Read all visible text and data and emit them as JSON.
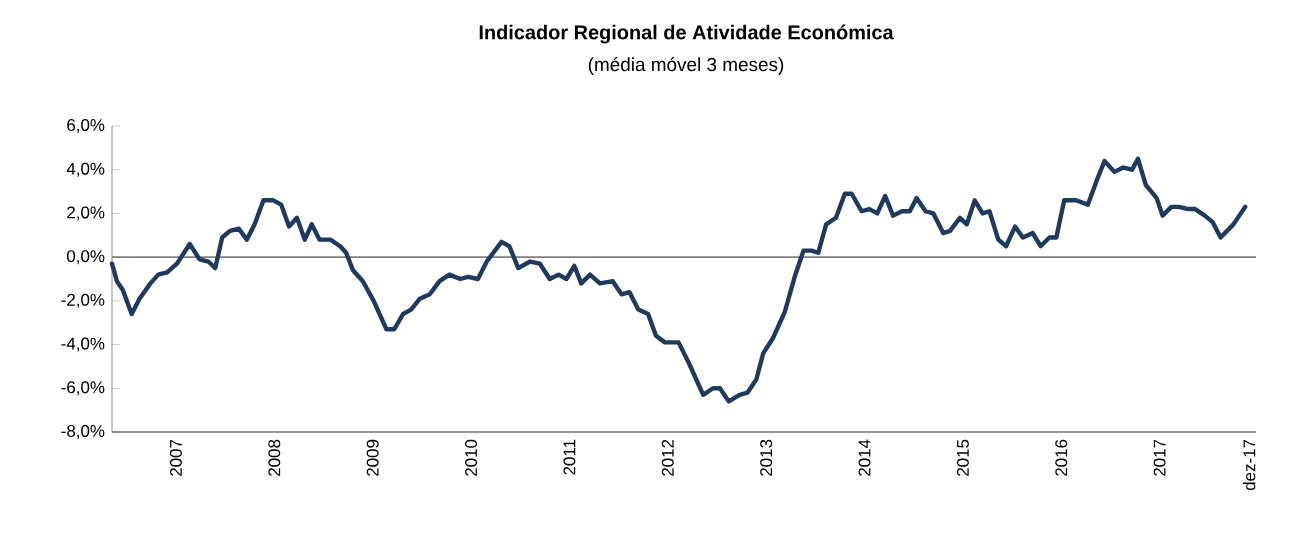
{
  "chart_data": {
    "type": "line",
    "title": "Indicador Regional de Atividade Económica",
    "subtitle": "(média móvel 3 meses)",
    "xlim": [
      2006.35,
      2017.98
    ],
    "xticks": [
      2007,
      2008,
      2009,
      2010,
      2011,
      2012,
      2013,
      2014,
      2015,
      2016,
      2017,
      {
        "value": 2017.91,
        "label": "dez-17"
      }
    ],
    "ylim": [
      -8,
      6
    ],
    "yticks": [
      {
        "value": -8,
        "label": "-8,0%"
      },
      {
        "value": -6,
        "label": "-6,0%"
      },
      {
        "value": -4,
        "label": "-4,0%"
      },
      {
        "value": -2,
        "label": "-2,0%"
      },
      {
        "value": 0,
        "label": "0,0%"
      },
      {
        "value": 2,
        "label": "2,0%"
      },
      {
        "value": 4,
        "label": "4,0%"
      },
      {
        "value": 6,
        "label": "6,0%"
      }
    ],
    "ref_lines": [
      {
        "axis": "y",
        "value": 0,
        "label": null,
        "color": "#808080"
      }
    ],
    "grid": false,
    "legend": false,
    "marker": "none",
    "line_style": "solid",
    "series": [
      {
        "color": "#1f3a5f",
        "x": [
          2006.35,
          2006.4,
          2006.46,
          2006.55,
          2006.63,
          2006.74,
          2006.82,
          2006.91,
          2007.01,
          2007.14,
          2007.24,
          2007.33,
          2007.4,
          2007.47,
          2007.55,
          2007.64,
          2007.72,
          2007.8,
          2007.89,
          2007.99,
          2008.07,
          2008.15,
          2008.23,
          2008.31,
          2008.38,
          2008.46,
          2008.57,
          2008.67,
          2008.73,
          2008.8,
          2008.9,
          2009.01,
          2009.14,
          2009.22,
          2009.31,
          2009.39,
          2009.48,
          2009.58,
          2009.68,
          2009.78,
          2009.89,
          2009.97,
          2010.07,
          2010.16,
          2010.31,
          2010.39,
          2010.48,
          2010.6,
          2010.7,
          2010.8,
          2010.89,
          2010.97,
          2011.05,
          2011.12,
          2011.21,
          2011.31,
          2011.44,
          2011.53,
          2011.61,
          2011.7,
          2011.8,
          2011.88,
          2011.97,
          2012.11,
          2012.22,
          2012.36,
          2012.46,
          2012.53,
          2012.62,
          2012.73,
          2012.81,
          2012.9,
          2012.97,
          2013.07,
          2013.19,
          2013.29,
          2013.38,
          2013.46,
          2013.53,
          2013.61,
          2013.71,
          2013.8,
          2013.87,
          2013.97,
          2014.05,
          2014.13,
          2014.21,
          2014.29,
          2014.38,
          2014.46,
          2014.53,
          2014.62,
          2014.7,
          2014.8,
          2014.87,
          2014.97,
          2015.04,
          2015.12,
          2015.2,
          2015.27,
          2015.36,
          2015.44,
          2015.53,
          2015.61,
          2015.71,
          2015.79,
          2015.88,
          2015.95,
          2016.03,
          2016.15,
          2016.27,
          2016.36,
          2016.44,
          2016.54,
          2016.63,
          2016.72,
          2016.78,
          2016.86,
          2016.97,
          2017.03,
          2017.12,
          2017.2,
          2017.29,
          2017.36,
          2017.46,
          2017.54,
          2017.62,
          2017.75,
          2017.87
        ],
        "values": [
          -0.3,
          -1.1,
          -1.5,
          -2.6,
          -1.9,
          -1.2,
          -0.8,
          -0.7,
          -0.3,
          0.6,
          -0.1,
          -0.2,
          -0.5,
          0.9,
          1.2,
          1.3,
          0.8,
          1.5,
          2.6,
          2.6,
          2.4,
          1.4,
          1.8,
          0.8,
          1.5,
          0.8,
          0.8,
          0.5,
          0.2,
          -0.6,
          -1.1,
          -2.0,
          -3.3,
          -3.3,
          -2.6,
          -2.4,
          -1.9,
          -1.7,
          -1.1,
          -0.8,
          -1.0,
          -0.9,
          -1.0,
          -0.2,
          0.7,
          0.5,
          -0.5,
          -0.2,
          -0.3,
          -1.0,
          -0.8,
          -1.0,
          -0.4,
          -1.2,
          -0.8,
          -1.2,
          -1.1,
          -1.7,
          -1.6,
          -2.4,
          -2.6,
          -3.6,
          -3.9,
          -3.9,
          -4.9,
          -6.3,
          -6.0,
          -6.0,
          -6.6,
          -6.3,
          -6.2,
          -5.6,
          -4.4,
          -3.7,
          -2.5,
          -0.9,
          0.3,
          0.3,
          0.2,
          1.5,
          1.8,
          2.9,
          2.9,
          2.1,
          2.2,
          2.0,
          2.8,
          1.9,
          2.1,
          2.1,
          2.7,
          2.1,
          2.0,
          1.1,
          1.2,
          1.8,
          1.5,
          2.6,
          2.0,
          2.1,
          0.8,
          0.5,
          1.4,
          0.9,
          1.1,
          0.5,
          0.9,
          0.9,
          2.6,
          2.6,
          2.4,
          3.5,
          4.4,
          3.9,
          4.1,
          4.0,
          4.5,
          3.3,
          2.7,
          1.9,
          2.3,
          2.3,
          2.2,
          2.2,
          1.9,
          1.6,
          0.9,
          1.5,
          2.3
        ]
      }
    ]
  }
}
